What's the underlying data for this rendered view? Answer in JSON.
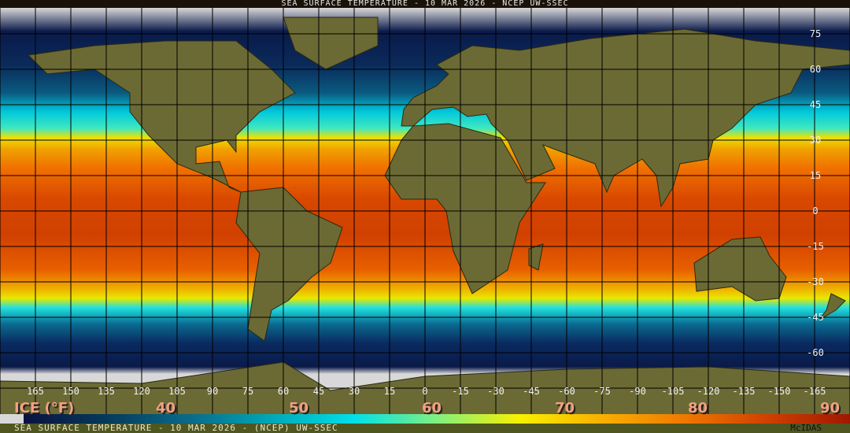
{
  "header": {
    "title": "SEA SURFACE TEMPERATURE - 10 MAR 2026 - NCEP UW-SSEC"
  },
  "footer": {
    "caption": "SEA SURFACE TEMPERATURE - 10 MAR 2026 - (NCEP)   UW-SSEC",
    "credit": "McIDAS"
  },
  "map": {
    "longitude_labels": [
      "165",
      "150",
      "135",
      "120",
      "105",
      "90",
      "75",
      "60",
      "45",
      "30",
      "15",
      "0",
      "-15",
      "-30",
      "-45",
      "-60",
      "-75",
      "-90",
      "-105",
      "-120",
      "-135",
      "-150",
      "-165"
    ],
    "latitude_labels": [
      "75",
      "60",
      "45",
      "30",
      "15",
      "0",
      "-15",
      "-30",
      "-45",
      "-60"
    ],
    "colors": {
      "land": "#6b6a35",
      "ice": "#d8d8d8",
      "grid": "#000000"
    }
  },
  "colorbar": {
    "unit_label": "ICE (°F)",
    "labels": [
      "40",
      "50",
      "60",
      "70",
      "80",
      "90"
    ],
    "stops": [
      "#0a1240",
      "#063a5a",
      "#0a6a8a",
      "#00a8b8",
      "#00e0e8",
      "#80f080",
      "#f8f000",
      "#f8b000",
      "#f07800",
      "#d04000",
      "#a01800"
    ]
  }
}
